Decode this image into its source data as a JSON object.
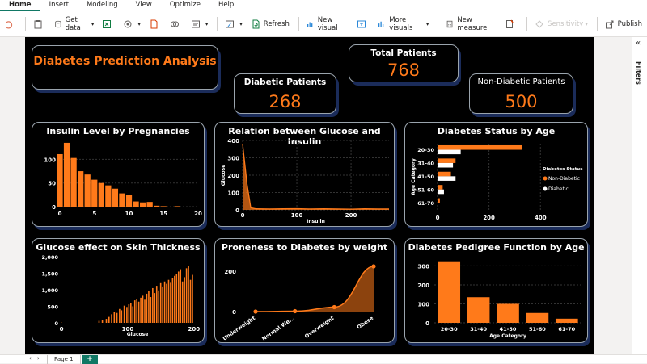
{
  "menu": [
    "Home",
    "Insert",
    "Modeling",
    "View",
    "Optimize",
    "Help"
  ],
  "ribbon": {
    "get_data": "Get data",
    "refresh": "Refresh",
    "new_visual": "New visual",
    "more_visuals": "More visuals",
    "new_measure": "New measure",
    "sensitivity": "Sensitivity",
    "publish": "Publish"
  },
  "right_pane": {
    "filters": "Filters"
  },
  "bottom": {
    "page_tab": "Page 1",
    "add_page": "+"
  },
  "report": {
    "title": "Diabetes Prediction Analysis",
    "kpis": {
      "total": {
        "label": "Total Patients",
        "value": "768"
      },
      "diabetic": {
        "label": "Diabetic Patients",
        "value": "268"
      },
      "non_diabetic": {
        "label": "Non-Diabetic Patients",
        "value": "500"
      }
    }
  },
  "colors": {
    "accent": "#ff7a1a",
    "background": "#000000",
    "border": "#9aa4ad",
    "shadow": "#1b2c5a"
  },
  "chart_data": [
    {
      "id": "insulin",
      "type": "bar",
      "title": "Insulin Level by Pregnancies",
      "categories": [
        0,
        1,
        2,
        3,
        4,
        5,
        6,
        7,
        8,
        9,
        10,
        11,
        12,
        13,
        14,
        15,
        17
      ],
      "values": [
        111,
        135,
        103,
        75,
        68,
        57,
        50,
        45,
        38,
        28,
        24,
        11,
        9,
        10,
        2,
        1,
        1
      ],
      "xticks": [
        "0",
        "5",
        "10",
        "15",
        "20"
      ],
      "yticks": [
        "0",
        "50",
        "100"
      ],
      "xlim": [
        0,
        20
      ],
      "ylim": [
        0,
        140
      ]
    },
    {
      "id": "glucose_insulin",
      "type": "area",
      "title": "Relation between Glucose and Insulin",
      "xlabel": "Insulin",
      "ylabel": "Glucose",
      "x": [
        0,
        8,
        15,
        25,
        50,
        75,
        100,
        125,
        150,
        175,
        200,
        225,
        250,
        270
      ],
      "y": [
        380,
        150,
        12,
        6,
        5,
        6,
        7,
        5,
        6,
        5,
        4,
        6,
        5,
        5
      ],
      "xticks": [
        "0",
        "100",
        "200"
      ],
      "yticks": [
        "0",
        "100",
        "200",
        "300",
        "400"
      ],
      "xlim": [
        0,
        270
      ],
      "ylim": [
        0,
        400
      ]
    },
    {
      "id": "status_age",
      "type": "bar",
      "orientation": "horizontal",
      "title": "Diabetes Status by Age",
      "ylabel": "Age Category",
      "categories": [
        "20-30",
        "31-40",
        "41-50",
        "51-60",
        "61-70"
      ],
      "series": [
        {
          "name": "Non-Diabetic",
          "values": [
            330,
            70,
            52,
            20,
            9
          ]
        },
        {
          "name": "Diabetic",
          "values": [
            90,
            60,
            70,
            25,
            3
          ]
        }
      ],
      "legend_title": "Diabetes Status",
      "xticks": [
        "0",
        "200",
        "400"
      ],
      "xlim": [
        0,
        440
      ]
    },
    {
      "id": "glucose_skin",
      "type": "bar",
      "title": "Glucose effect on Skin Thickness",
      "xlabel": "Glucose",
      "xticks": [
        "0",
        "100",
        "200"
      ],
      "yticks": [
        "0",
        "500",
        "1,000",
        "1,500",
        "2,000"
      ],
      "x": [
        0,
        57,
        62,
        68,
        72,
        76,
        80,
        84,
        88,
        91,
        95,
        99,
        102,
        105,
        108,
        111,
        114,
        117,
        120,
        123,
        126,
        129,
        132,
        135,
        138,
        141,
        144,
        147,
        150,
        153,
        156,
        159,
        162,
        165,
        168,
        171,
        174,
        177,
        180,
        183,
        186,
        189,
        192,
        195,
        198
      ],
      "values": [
        10,
        60,
        80,
        120,
        180,
        260,
        340,
        300,
        420,
        380,
        520,
        480,
        560,
        610,
        500,
        680,
        720,
        640,
        760,
        820,
        700,
        880,
        960,
        780,
        1050,
        900,
        1120,
        980,
        1200,
        1100,
        1250,
        1180,
        1300,
        1210,
        1350,
        1420,
        1480,
        1550,
        1620,
        1250,
        1380,
        1650,
        1720,
        1300,
        1450
      ],
      "xlim": [
        0,
        210
      ],
      "ylim": [
        0,
        2000
      ]
    },
    {
      "id": "weight",
      "type": "area",
      "title": "Proneness to Diabetes by weight",
      "categories": [
        "Underweight",
        "Normal We...",
        "Overweight",
        "Obese"
      ],
      "values": [
        0,
        2,
        22,
        224
      ],
      "yticks": [
        "0",
        "200"
      ],
      "ylim": [
        0,
        240
      ]
    },
    {
      "id": "pedigree",
      "type": "bar",
      "title": "Diabetes Pedigree Function by Age",
      "xlabel": "Age Category",
      "categories": [
        "20-30",
        "31-40",
        "41-50",
        "51-60",
        "61-70"
      ],
      "values": [
        320,
        135,
        100,
        52,
        22
      ],
      "yticks": [
        "0",
        "100",
        "200",
        "300"
      ],
      "ylim": [
        0,
        340
      ]
    }
  ]
}
